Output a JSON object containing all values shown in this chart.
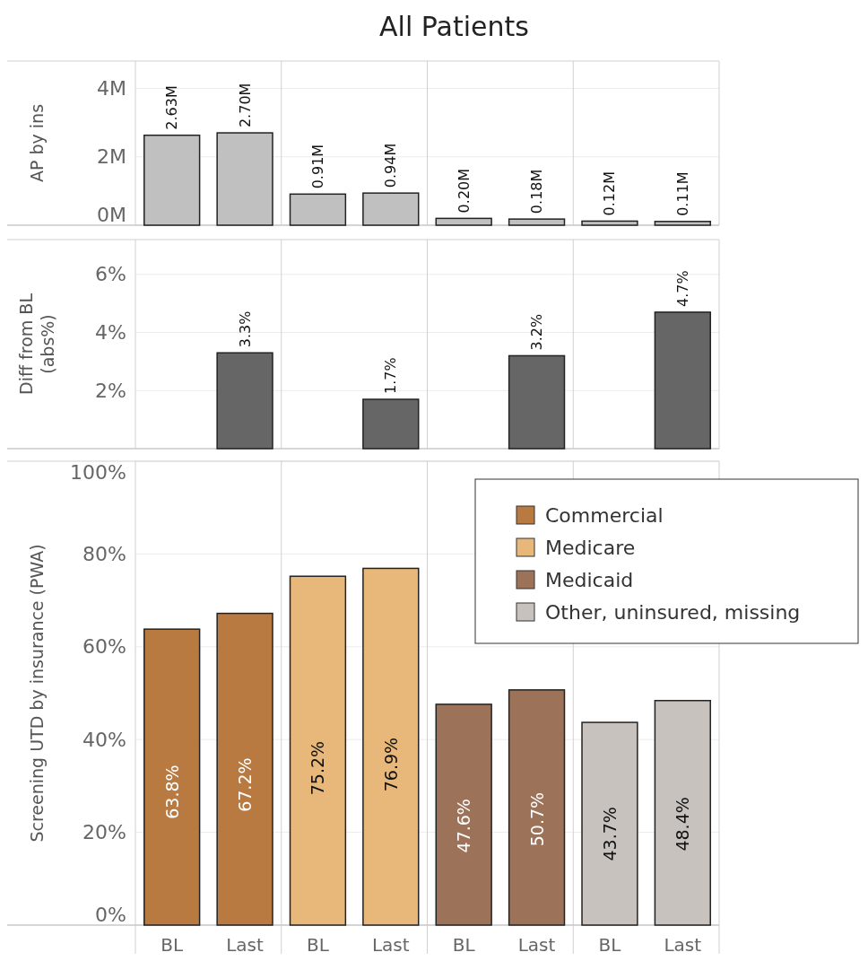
{
  "chart_data": [
    {
      "type": "bar",
      "title": "All Patients",
      "ylabel": "AP by ins",
      "categories": [
        null,
        null,
        null,
        null,
        null,
        null,
        null,
        null
      ],
      "values": [
        2.63,
        2.7,
        0.91,
        0.94,
        0.2,
        0.18,
        0.12,
        0.11
      ],
      "color": "#c0c0c0",
      "value_labels": [
        "2.63M",
        "2.70M",
        "0.91M",
        "0.94M",
        "0.20M",
        "0.18M",
        "0.12M",
        "0.11M"
      ],
      "ylim": [
        0,
        4.8
      ],
      "yticks": [
        {
          "value": 0,
          "label": "0M"
        },
        {
          "value": 2,
          "label": "2M"
        },
        {
          "value": 4,
          "label": "4M"
        }
      ],
      "grid": "y"
    },
    {
      "type": "bar",
      "ylabel": "Diff from BL\n(abs%)",
      "categories": [
        null,
        null,
        null,
        null,
        null,
        null,
        null,
        null
      ],
      "values": [
        null,
        3.3,
        null,
        1.7,
        null,
        3.2,
        null,
        4.7
      ],
      "color": "#666666",
      "value_labels": [
        null,
        "3.3%",
        null,
        "1.7%",
        null,
        "3.2%",
        null,
        "4.7%"
      ],
      "ylim": [
        0,
        7.2
      ],
      "yticks": [
        {
          "value": 2,
          "label": "2%"
        },
        {
          "value": 4,
          "label": "4%"
        },
        {
          "value": 6,
          "label": "6%"
        }
      ],
      "grid": "y"
    },
    {
      "type": "bar",
      "ylabel": "Screening UTD by insurance (PWA)",
      "categories": [
        "BL",
        "Last",
        "BL",
        "Last",
        "BL",
        "Last",
        "BL",
        "Last"
      ],
      "series": [
        {
          "name": "Commercial",
          "color": "#b87a40",
          "values": [
            63.8,
            67.2,
            null,
            null,
            null,
            null,
            null,
            null
          ],
          "value_labels": [
            "63.8%",
            "67.2%",
            null,
            null,
            null,
            null,
            null,
            null
          ]
        },
        {
          "name": "Medicare",
          "color": "#e8b87a",
          "values": [
            null,
            null,
            75.2,
            76.9,
            null,
            null,
            null,
            null
          ],
          "value_labels": [
            null,
            null,
            "75.2%",
            "76.9%",
            null,
            null,
            null,
            null
          ]
        },
        {
          "name": "Medicaid",
          "color": "#9c7259",
          "values": [
            null,
            null,
            null,
            null,
            47.6,
            50.7,
            null,
            null
          ],
          "value_labels": [
            null,
            null,
            null,
            null,
            "47.6%",
            "50.7%",
            null,
            null
          ]
        },
        {
          "name": "Other, uninsured, missing",
          "color": "#c8c2bf",
          "values": [
            null,
            null,
            null,
            null,
            null,
            null,
            43.7,
            48.4
          ],
          "value_labels": [
            null,
            null,
            null,
            null,
            null,
            null,
            "43.7%",
            "48.4%"
          ]
        }
      ],
      "ylim": [
        0,
        100
      ],
      "yticks": [
        {
          "value": 0,
          "label": "0%"
        },
        {
          "value": 20,
          "label": "20%"
        },
        {
          "value": 40,
          "label": "40%"
        },
        {
          "value": 60,
          "label": "60%"
        },
        {
          "value": 80,
          "label": "80%"
        },
        {
          "value": 100,
          "label": "100%"
        }
      ],
      "grid": "y",
      "legend": "top right"
    }
  ]
}
